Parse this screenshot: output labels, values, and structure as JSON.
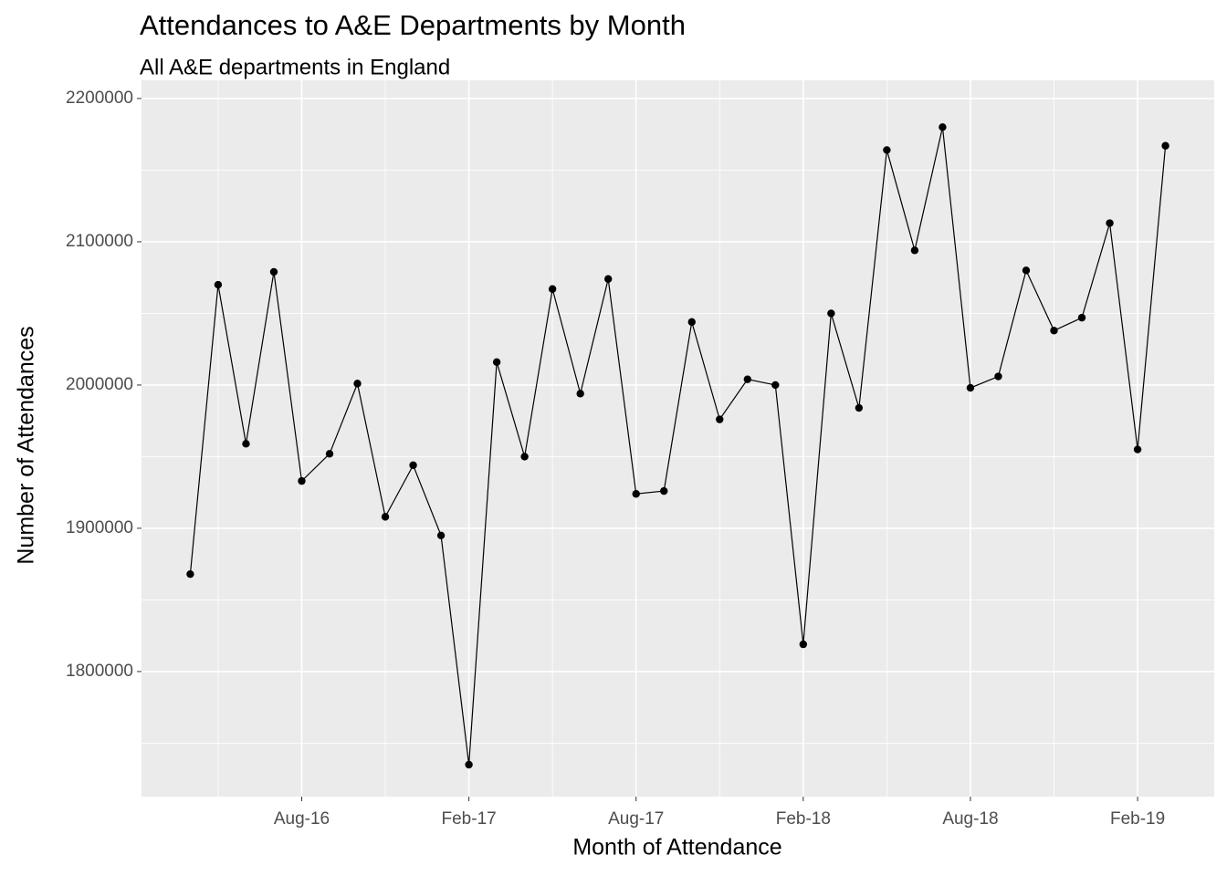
{
  "chart_data": {
    "type": "line",
    "title": "Attendances to A&E Departments by Month",
    "subtitle": "All A&E departments in England",
    "x_label": "Month of Attendance",
    "y_label": "Number of Attendances",
    "x": [
      "2016-04",
      "2016-05",
      "2016-06",
      "2016-07",
      "2016-08",
      "2016-09",
      "2016-10",
      "2016-11",
      "2016-12",
      "2017-01",
      "2017-02",
      "2017-03",
      "2017-04",
      "2017-05",
      "2017-06",
      "2017-07",
      "2017-08",
      "2017-09",
      "2017-10",
      "2017-11",
      "2017-12",
      "2018-01",
      "2018-02",
      "2018-03",
      "2018-04",
      "2018-05",
      "2018-06",
      "2018-07",
      "2018-08",
      "2018-09",
      "2018-10",
      "2018-11",
      "2018-12",
      "2019-01",
      "2019-02",
      "2019-03"
    ],
    "values": [
      1868000,
      2070000,
      1959000,
      2079000,
      1933000,
      1952000,
      2001000,
      1908000,
      1944000,
      1895000,
      1735000,
      2016000,
      1950000,
      2067000,
      1994000,
      2074000,
      1924000,
      1926000,
      2044000,
      1976000,
      2004000,
      2000000,
      1819000,
      2050000,
      1984000,
      2164000,
      2094000,
      2180000,
      1998000,
      2006000,
      2080000,
      2038000,
      2047000,
      2113000,
      1955000,
      2167000
    ],
    "color": "#000000",
    "ylim": [
      1712700,
      2212700
    ],
    "yticks": [
      1800000,
      1900000,
      2000000,
      2100000,
      2200000
    ],
    "xticks": [
      {
        "value": "2016-08",
        "label": "Aug-16"
      },
      {
        "value": "2017-02",
        "label": "Feb-17"
      },
      {
        "value": "2017-08",
        "label": "Aug-17"
      },
      {
        "value": "2018-02",
        "label": "Feb-18"
      },
      {
        "value": "2018-08",
        "label": "Aug-18"
      },
      {
        "value": "2019-02",
        "label": "Feb-19"
      }
    ],
    "grid": true
  }
}
